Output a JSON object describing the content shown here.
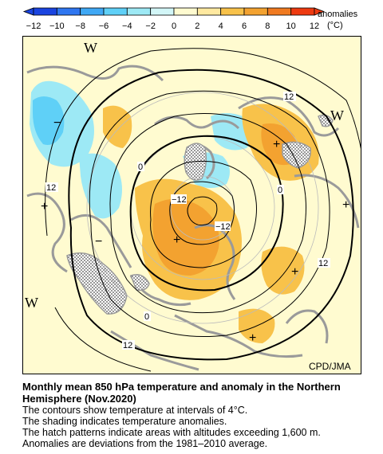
{
  "legend": {
    "title_line1": "anomalies",
    "title_line2": "(°C)",
    "ticks": [
      "−12",
      "−10",
      "−8",
      "−6",
      "−4",
      "−2",
      "0",
      "2",
      "4",
      "6",
      "8",
      "10",
      "12"
    ],
    "colors": [
      "#1a44e0",
      "#2f76f0",
      "#3fa8f5",
      "#5fd0f7",
      "#9de9f5",
      "#d2f6f7",
      "#fffbd0",
      "#ffe9a0",
      "#f8c24a",
      "#f3a230",
      "#f07a20",
      "#ee3a10"
    ]
  },
  "map": {
    "credit": "CPD/JMA",
    "contour_labels": [
      "12",
      "0",
      "−12",
      "−12",
      "0",
      "12",
      "0",
      "12"
    ],
    "pressure_labels": [
      "W",
      "W",
      "W"
    ],
    "colors": {
      "land": "#9a9a9a",
      "neutral": "#fffbd0",
      "warm_light": "#f8c24a",
      "warm_strong": "#f3a230",
      "cold_light": "#9de9f5",
      "cold_mid": "#5fd0f7",
      "contour": "#000000"
    }
  },
  "caption": {
    "title": "Monthly mean 850 hPa temperature and anomaly in the Northern Hemisphere (Nov.2020)",
    "line1": "The contours show temperature at intervals of 4°C.",
    "line2": "The shading indicates temperature anomalies.",
    "line3": "The hatch patterns indicate areas with altitudes exceeding 1,600 m.",
    "line4": "Anomalies are deviations from the 1981–2010 average."
  }
}
